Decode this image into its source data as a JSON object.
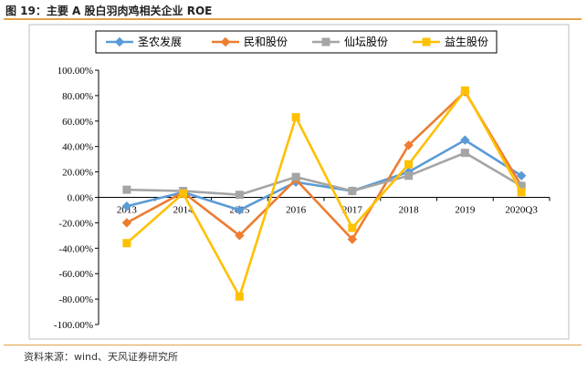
{
  "figure": {
    "title": "图 19：主要 A 股白羽肉鸡相关企业 ROE",
    "source": "资料来源：wind、天风证券研究所"
  },
  "chart_data": {
    "type": "line",
    "categories": [
      "2013",
      "2014",
      "2015",
      "2016",
      "2017",
      "2018",
      "2019",
      "2020Q3"
    ],
    "ylim": [
      -100,
      100
    ],
    "y_ticks": [
      100,
      80,
      60,
      40,
      20,
      0,
      -20,
      -40,
      -60,
      -80,
      -100
    ],
    "y_tick_labels": [
      "100.00%",
      "80.00%",
      "60.00%",
      "40.00%",
      "20.00%",
      "0.00%",
      "-20.00%",
      "-40.00%",
      "-60.00%",
      "-80.00%",
      "-100.00%"
    ],
    "legend_position": "top",
    "grid": false,
    "series": [
      {
        "name": "圣农发展",
        "color": "#5b9bd5",
        "marker": "diamond",
        "values": [
          -7,
          4,
          -10,
          12,
          5,
          20,
          45,
          17
        ]
      },
      {
        "name": "民和股份",
        "color": "#ed7d31",
        "marker": "diamond",
        "values": [
          -20,
          4,
          -30,
          14,
          -33,
          41,
          83,
          9
        ]
      },
      {
        "name": "仙坛股份",
        "color": "#a5a5a5",
        "marker": "square",
        "values": [
          6,
          5,
          2,
          16,
          5,
          17,
          35,
          9
        ]
      },
      {
        "name": "益生股份",
        "color": "#ffc000",
        "marker": "square",
        "values": [
          -36,
          3,
          -78,
          63,
          -24,
          26,
          84,
          4
        ]
      }
    ]
  }
}
